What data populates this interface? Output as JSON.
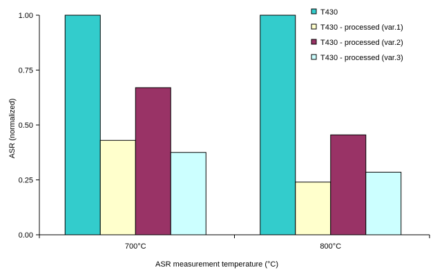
{
  "chart_data": {
    "type": "bar",
    "title": "",
    "xlabel": "ASR measurement temperature (°C)",
    "ylabel": "ASR (normalized)",
    "categories": [
      "700°C",
      "800°C"
    ],
    "ylim": [
      0,
      1.0
    ],
    "yticks": [
      "0.00",
      "0.25",
      "0.50",
      "0.75",
      "1.00"
    ],
    "grid": false,
    "legend_position": "top-right",
    "series": [
      {
        "name": "T430",
        "values": [
          1.0,
          1.0
        ],
        "color": "#33CCCC"
      },
      {
        "name": "T430 - processed (var.1)",
        "values": [
          0.43,
          0.24
        ],
        "color": "#FFFFCC"
      },
      {
        "name": "T430 - processed (var.2)",
        "values": [
          0.67,
          0.455
        ],
        "color": "#993366"
      },
      {
        "name": "T430 - processed (var.3)",
        "values": [
          0.375,
          0.285
        ],
        "color": "#CCFFFF"
      }
    ]
  }
}
